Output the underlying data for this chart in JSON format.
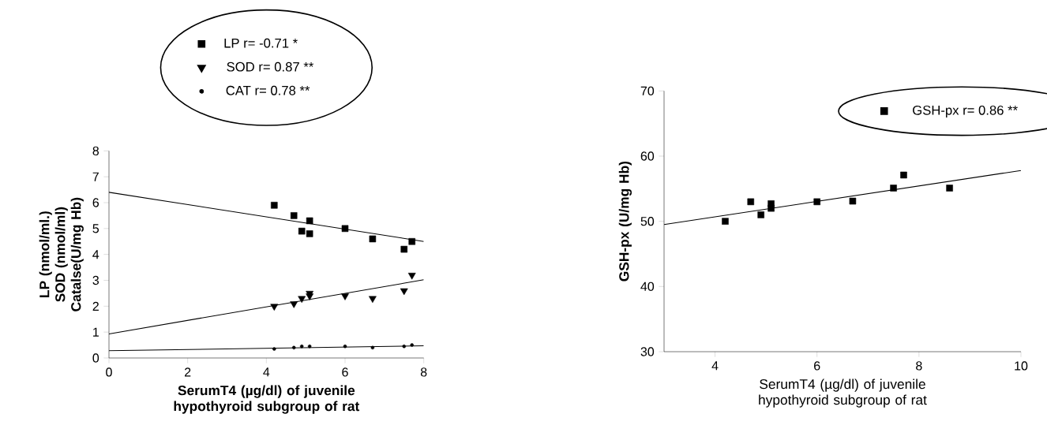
{
  "chart_data": [
    {
      "type": "scatter",
      "xlabel": "SerumT4 (µg/dl) of juvenile hypothyroid subgroup of rat",
      "ylabel": "LP (nmol/ml.) SOD (nmol/ml) Catalse(U/mg Hb)",
      "xlim": [
        0,
        8
      ],
      "ylim": [
        0,
        8
      ],
      "xticks": [
        0,
        2,
        4,
        6,
        8
      ],
      "yticks": [
        0,
        1,
        2,
        3,
        4,
        5,
        6,
        7,
        8
      ],
      "grid": false,
      "legend": "top",
      "series": [
        {
          "name": "LP r= -0.71 *",
          "color": "#000000",
          "marker": "square",
          "x": [
            4.2,
            4.7,
            4.9,
            5.1,
            5.1,
            6.0,
            6.7,
            7.5,
            7.7
          ],
          "values": [
            5.9,
            5.5,
            4.9,
            5.3,
            4.8,
            5.0,
            4.6,
            4.2,
            4.5
          ]
        },
        {
          "name": "SOD  r= 0.87 **",
          "color": "#000000",
          "marker": "triangle",
          "x": [
            4.2,
            4.7,
            4.9,
            5.1,
            5.1,
            6.0,
            6.7,
            7.5,
            7.7
          ],
          "values": [
            2.0,
            2.1,
            2.3,
            2.5,
            2.4,
            2.4,
            2.3,
            2.6,
            3.2
          ]
        },
        {
          "name": "CAT  r= 0.78 **",
          "color": "#000000",
          "marker": "circle",
          "x": [
            4.2,
            4.7,
            4.9,
            5.1,
            6.0,
            6.7,
            7.5,
            7.7
          ],
          "values": [
            0.35,
            0.4,
            0.45,
            0.45,
            0.45,
            0.4,
            0.45,
            0.5
          ]
        },
        {
          "type": "line",
          "color": "#000000",
          "marker": "none",
          "x": [
            0,
            8
          ],
          "values": [
            6.4,
            4.5
          ]
        },
        {
          "type": "line",
          "color": "#000000",
          "marker": "none",
          "x": [
            0,
            8
          ],
          "values": [
            0.93,
            3.02
          ]
        },
        {
          "type": "line",
          "color": "#000000",
          "marker": "none",
          "x": [
            0,
            8
          ],
          "values": [
            0.28,
            0.47
          ]
        }
      ]
    },
    {
      "type": "scatter",
      "xlabel": "SerumT4 (µg/dl) of juvenile hypothyroid subgroup of rat",
      "ylabel": "GSH-px (U/mg Hb)",
      "xlim": [
        3,
        10
      ],
      "ylim": [
        30,
        70
      ],
      "xticks": [
        4,
        6,
        8,
        10
      ],
      "yticks": [
        30,
        40,
        50,
        60,
        70
      ],
      "grid": false,
      "legend": "top right",
      "series": [
        {
          "name": "GSH-px  r= 0.86 **",
          "color": "#000000",
          "marker": "square",
          "x": [
            4.2,
            4.7,
            4.9,
            5.1,
            5.1,
            6.0,
            6.7,
            7.5,
            7.7,
            8.6
          ],
          "values": [
            50,
            53,
            51,
            52.7,
            52,
            53,
            53.1,
            55.1,
            57.1,
            55.1
          ]
        },
        {
          "type": "line",
          "color": "#000000",
          "marker": "none",
          "x": [
            3,
            10
          ],
          "values": [
            49.5,
            57.8
          ]
        }
      ]
    }
  ]
}
